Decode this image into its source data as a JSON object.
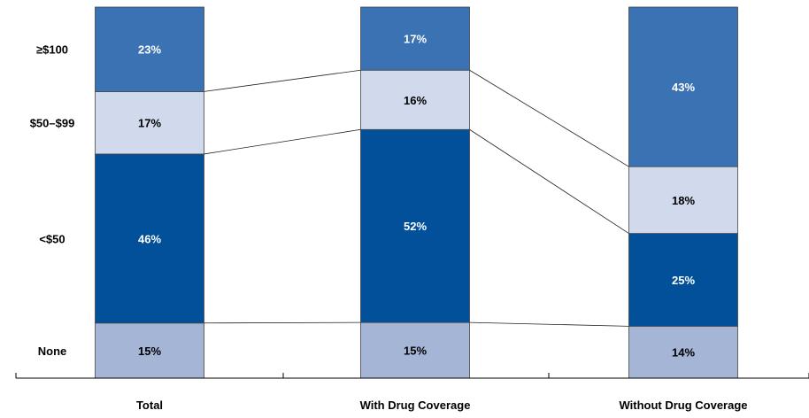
{
  "chart_data": {
    "type": "bar",
    "stacked": true,
    "normalized_to_percent": true,
    "title": "",
    "xlabel": "",
    "ylabel": "",
    "categories": [
      "Total",
      "With Drug Coverage",
      "Without Drug Coverage"
    ],
    "series": [
      {
        "name": "None",
        "values": [
          15,
          15,
          14
        ],
        "color": "#a4b5d6",
        "label_color": "#000000"
      },
      {
        "name": "<$50",
        "values": [
          46,
          52,
          25
        ],
        "color": "#02509a",
        "label_color": "#ffffff"
      },
      {
        "name": "$50–$99",
        "values": [
          17,
          16,
          18
        ],
        "color": "#d1d9ec",
        "label_color": "#000000"
      },
      {
        "name": "≥$100",
        "values": [
          23,
          17,
          43
        ],
        "color": "#3b72b3",
        "label_color": "#ffffff"
      }
    ],
    "connector_lines": true,
    "grid": false,
    "legend": "left (category labels)"
  }
}
